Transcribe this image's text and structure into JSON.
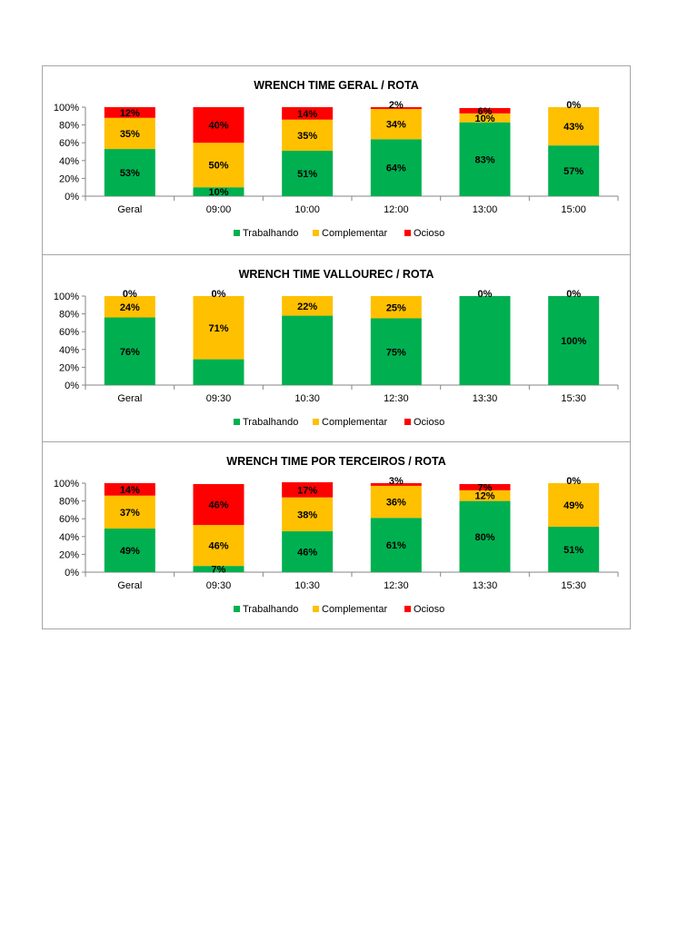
{
  "colors": {
    "trabalhando": "#00b050",
    "complementar": "#ffc000",
    "ocioso": "#ff0000"
  },
  "legend": [
    "Trabalhando",
    "Complementar",
    "Ocioso"
  ],
  "chart_data": [
    {
      "type": "bar",
      "stacked": true,
      "title": "WRENCH TIME GERAL / ROTA",
      "categories": [
        "Geral",
        "09:00",
        "10:00",
        "12:00",
        "13:00",
        "15:00"
      ],
      "yticks": [
        "0%",
        "20%",
        "40%",
        "60%",
        "80%",
        "100%"
      ],
      "ylim": [
        0,
        100
      ],
      "series": [
        {
          "name": "Trabalhando",
          "values": [
            53,
            10,
            51,
            64,
            83,
            57
          ],
          "labels": [
            "53%",
            "10%",
            "51%",
            "64%",
            "83%",
            "57%"
          ]
        },
        {
          "name": "Complementar",
          "values": [
            35,
            50,
            35,
            34,
            10,
            43
          ],
          "labels": [
            "35%",
            "50%",
            "35%",
            "34%",
            "10%",
            "43%"
          ]
        },
        {
          "name": "Ocioso",
          "values": [
            12,
            40,
            14,
            2,
            6,
            0
          ],
          "labels": [
            "12%",
            "40%",
            "14%",
            "2%",
            "6%",
            "0%"
          ]
        }
      ]
    },
    {
      "type": "bar",
      "stacked": true,
      "title": "WRENCH TIME VALLOUREC / ROTA",
      "categories": [
        "Geral",
        "09:30",
        "10:30",
        "12:30",
        "13:30",
        "15:30"
      ],
      "yticks": [
        "0%",
        "20%",
        "40%",
        "60%",
        "80%",
        "100%"
      ],
      "ylim": [
        0,
        100
      ],
      "series": [
        {
          "name": "Trabalhando",
          "values": [
            76,
            29,
            78,
            75,
            100,
            100
          ],
          "labels": [
            "76%",
            "",
            "",
            "75%",
            "",
            "100%"
          ]
        },
        {
          "name": "Complementar",
          "values": [
            24,
            71,
            22,
            25,
            0,
            0
          ],
          "labels": [
            "24%",
            "71%",
            "22%",
            "25%",
            "",
            ""
          ]
        },
        {
          "name": "Ocioso",
          "values": [
            0,
            0,
            0,
            0,
            0,
            0
          ],
          "labels": [
            "0%",
            "0%",
            "",
            "",
            "0%",
            "0%"
          ]
        }
      ]
    },
    {
      "type": "bar",
      "stacked": true,
      "title": "WRENCH TIME POR TERCEIROS / ROTA",
      "categories": [
        "Geral",
        "09:30",
        "10:30",
        "12:30",
        "13:30",
        "15:30"
      ],
      "yticks": [
        "0%",
        "20%",
        "40%",
        "60%",
        "80%",
        "100%"
      ],
      "ylim": [
        0,
        100
      ],
      "series": [
        {
          "name": "Trabalhando",
          "values": [
            49,
            7,
            46,
            61,
            80,
            51
          ],
          "labels": [
            "49%",
            "7%",
            "46%",
            "61%",
            "80%",
            "51%"
          ]
        },
        {
          "name": "Complementar",
          "values": [
            37,
            46,
            38,
            36,
            12,
            49
          ],
          "labels": [
            "37%",
            "46%",
            "38%",
            "36%",
            "12%",
            "49%"
          ]
        },
        {
          "name": "Ocioso",
          "values": [
            14,
            46,
            17,
            3,
            7,
            0
          ],
          "labels": [
            "14%",
            "46%",
            "17%",
            "3%",
            "7%",
            "0%"
          ]
        }
      ]
    }
  ]
}
